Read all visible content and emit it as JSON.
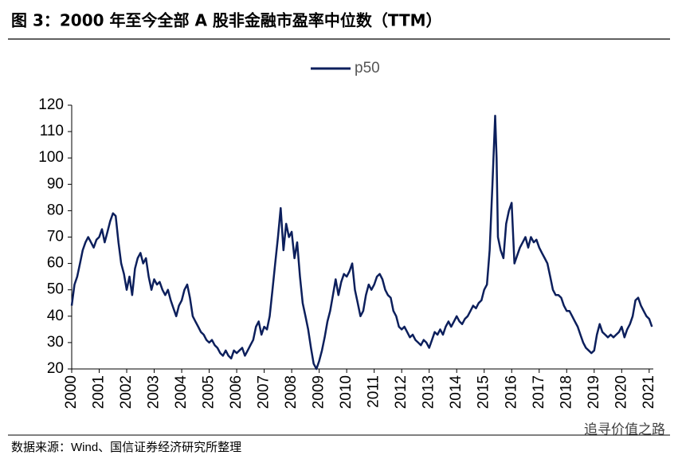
{
  "chart_data": {
    "type": "line",
    "title": "图 3：2000 年至今全部 A 股非金融市盈率中位数（TTM）",
    "source": "数据来源：Wind、国信证券经济研究所整理",
    "watermark": "追寻价值之路",
    "legend": "top",
    "xlim": [
      2000,
      2021.15
    ],
    "xticks": [
      2000,
      2001,
      2002,
      2003,
      2004,
      2005,
      2006,
      2007,
      2008,
      2009,
      2010,
      2011,
      2012,
      2013,
      2014,
      2015,
      2016,
      2017,
      2018,
      2019,
      2020,
      2021
    ],
    "ylim": [
      20,
      120
    ],
    "yticks": [
      20,
      30,
      40,
      50,
      60,
      70,
      80,
      90,
      100,
      110,
      120
    ],
    "x": [
      2000.0,
      2000.1,
      2000.2,
      2000.3,
      2000.4,
      2000.5,
      2000.6,
      2000.7,
      2000.8,
      2000.9,
      2001.0,
      2001.1,
      2001.2,
      2001.3,
      2001.4,
      2001.5,
      2001.6,
      2001.7,
      2001.8,
      2001.9,
      2002.0,
      2002.1,
      2002.2,
      2002.3,
      2002.4,
      2002.5,
      2002.6,
      2002.7,
      2002.8,
      2002.9,
      2003.0,
      2003.1,
      2003.2,
      2003.3,
      2003.4,
      2003.5,
      2003.6,
      2003.7,
      2003.8,
      2003.9,
      2004.0,
      2004.1,
      2004.2,
      2004.3,
      2004.4,
      2004.5,
      2004.6,
      2004.7,
      2004.8,
      2004.9,
      2005.0,
      2005.1,
      2005.2,
      2005.3,
      2005.4,
      2005.5,
      2005.6,
      2005.7,
      2005.8,
      2005.9,
      2006.0,
      2006.1,
      2006.2,
      2006.3,
      2006.4,
      2006.5,
      2006.6,
      2006.7,
      2006.8,
      2006.9,
      2007.0,
      2007.1,
      2007.2,
      2007.3,
      2007.4,
      2007.5,
      2007.6,
      2007.7,
      2007.8,
      2007.9,
      2008.0,
      2008.1,
      2008.2,
      2008.3,
      2008.4,
      2008.5,
      2008.6,
      2008.7,
      2008.8,
      2008.9,
      2009.0,
      2009.1,
      2009.2,
      2009.3,
      2009.4,
      2009.5,
      2009.6,
      2009.7,
      2009.8,
      2009.9,
      2010.0,
      2010.1,
      2010.2,
      2010.3,
      2010.4,
      2010.5,
      2010.6,
      2010.7,
      2010.8,
      2010.9,
      2011.0,
      2011.1,
      2011.2,
      2011.3,
      2011.4,
      2011.5,
      2011.6,
      2011.7,
      2011.8,
      2011.9,
      2012.0,
      2012.1,
      2012.2,
      2012.3,
      2012.4,
      2012.5,
      2012.6,
      2012.7,
      2012.8,
      2012.9,
      2013.0,
      2013.1,
      2013.2,
      2013.3,
      2013.4,
      2013.5,
      2013.6,
      2013.7,
      2013.8,
      2013.9,
      2014.0,
      2014.1,
      2014.2,
      2014.3,
      2014.4,
      2014.5,
      2014.6,
      2014.7,
      2014.8,
      2014.9,
      2015.0,
      2015.1,
      2015.2,
      2015.3,
      2015.4,
      2015.45,
      2015.5,
      2015.6,
      2015.7,
      2015.8,
      2015.9,
      2016.0,
      2016.1,
      2016.2,
      2016.3,
      2016.4,
      2016.5,
      2016.6,
      2016.7,
      2016.8,
      2016.9,
      2017.0,
      2017.1,
      2017.2,
      2017.3,
      2017.4,
      2017.5,
      2017.6,
      2017.7,
      2017.8,
      2017.9,
      2018.0,
      2018.1,
      2018.2,
      2018.3,
      2018.4,
      2018.5,
      2018.6,
      2018.7,
      2018.8,
      2018.9,
      2019.0,
      2019.1,
      2019.2,
      2019.3,
      2019.4,
      2019.5,
      2019.6,
      2019.7,
      2019.8,
      2019.9,
      2020.0,
      2020.1,
      2020.2,
      2020.3,
      2020.4,
      2020.5,
      2020.6,
      2020.7,
      2020.8,
      2020.9,
      2021.0,
      2021.1
    ],
    "series": [
      {
        "name": "p50",
        "color": "#0c1f5c",
        "values": [
          44,
          52,
          55,
          60,
          65,
          68,
          70,
          68,
          66,
          69,
          70,
          73,
          68,
          72,
          76,
          79,
          78,
          68,
          60,
          56,
          50,
          55,
          48,
          58,
          62,
          64,
          60,
          62,
          55,
          50,
          54,
          52,
          53,
          50,
          48,
          50,
          46,
          43,
          40,
          44,
          46,
          50,
          52,
          47,
          40,
          38,
          36,
          34,
          33,
          31,
          30,
          31,
          29,
          28,
          26,
          25,
          27,
          25,
          24,
          27,
          26,
          27,
          28,
          25,
          27,
          29,
          31,
          36,
          38,
          33,
          36,
          35,
          40,
          50,
          60,
          70,
          81,
          65,
          75,
          70,
          72,
          62,
          68,
          55,
          45,
          40,
          35,
          28,
          22,
          20,
          23,
          27,
          32,
          38,
          42,
          48,
          54,
          48,
          53,
          56,
          55,
          57,
          60,
          50,
          45,
          40,
          42,
          48,
          52,
          50,
          52,
          55,
          56,
          54,
          50,
          48,
          47,
          42,
          40,
          36,
          35,
          36,
          34,
          32,
          33,
          31,
          30,
          29,
          31,
          30,
          28,
          31,
          34,
          33,
          35,
          33,
          36,
          38,
          36,
          38,
          40,
          38,
          37,
          39,
          40,
          42,
          44,
          43,
          45,
          46,
          50,
          52,
          65,
          90,
          116,
          100,
          70,
          65,
          62,
          75,
          80,
          83,
          60,
          63,
          66,
          68,
          70,
          66,
          70,
          68,
          69,
          66,
          64,
          62,
          60,
          55,
          50,
          48,
          48,
          47,
          44,
          42,
          42,
          40,
          38,
          36,
          33,
          30,
          28,
          27,
          26,
          27,
          33,
          37,
          34,
          33,
          32,
          33,
          32,
          33,
          34,
          36,
          32,
          35,
          37,
          40,
          46,
          47,
          44,
          42,
          40,
          39,
          36
        ]
      }
    ]
  }
}
